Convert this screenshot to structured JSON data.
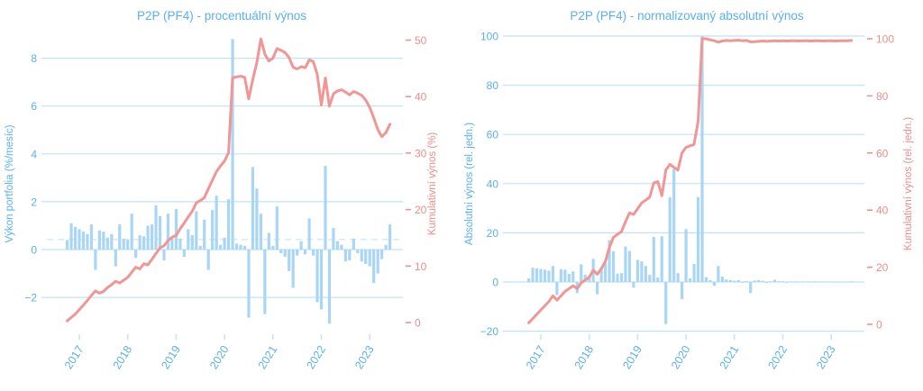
{
  "style": {
    "background": "#ffffff",
    "bar_color": "#a9d6f4",
    "line_color": "#f19595",
    "grid_color": "#bfe3f8",
    "dashed_color": "#d7ebf9",
    "blue_text": "#58b0f0",
    "red_text": "#f08c8c"
  },
  "chart_data": [
    {
      "type": "bar+line",
      "title": "P2P (PF4) - procentuální výnos",
      "left_axis": {
        "label": "Výkon portfolia (%/mesíc)",
        "ticks": [
          -2,
          0,
          2,
          4,
          6,
          8
        ],
        "range": [
          -3.5,
          9.0
        ]
      },
      "right_axis": {
        "label": "Kumulativní výnos (%)",
        "ticks": [
          0,
          10,
          20,
          30,
          40,
          50
        ],
        "range": [
          -2,
          51
        ]
      },
      "x_year_ticks": [
        "2017",
        "2018",
        "2019",
        "2020",
        "2021",
        "2022",
        "2023"
      ],
      "grid": true,
      "average_line": 0.42,
      "x": [
        "2016-10",
        "2016-11",
        "2016-12",
        "2017-01",
        "2017-02",
        "2017-03",
        "2017-04",
        "2017-05",
        "2017-06",
        "2017-07",
        "2017-08",
        "2017-09",
        "2017-10",
        "2017-11",
        "2017-12",
        "2018-01",
        "2018-02",
        "2018-03",
        "2018-04",
        "2018-05",
        "2018-06",
        "2018-07",
        "2018-08",
        "2018-09",
        "2018-10",
        "2018-11",
        "2018-12",
        "2019-01",
        "2019-02",
        "2019-03",
        "2019-04",
        "2019-05",
        "2019-06",
        "2019-07",
        "2019-08",
        "2019-09",
        "2019-10",
        "2019-11",
        "2019-12",
        "2020-01",
        "2020-02",
        "2020-03",
        "2020-04",
        "2020-05",
        "2020-06",
        "2020-07",
        "2020-08",
        "2020-09",
        "2020-10",
        "2020-11",
        "2020-12",
        "2021-01",
        "2021-02",
        "2021-03",
        "2021-04",
        "2021-05",
        "2021-06",
        "2021-07",
        "2021-08",
        "2021-09",
        "2021-10",
        "2021-11",
        "2021-12",
        "2022-01",
        "2022-02",
        "2022-03",
        "2022-04",
        "2022-05",
        "2022-06",
        "2022-07",
        "2022-08",
        "2022-09",
        "2022-10",
        "2022-11",
        "2022-12",
        "2023-01",
        "2023-02",
        "2023-03",
        "2023-04",
        "2023-05",
        "2023-06"
      ],
      "bar_series": {
        "name": "Výkon portfolia (%/mesíc)",
        "values": [
          0.4,
          1.1,
          0.95,
          0.85,
          0.75,
          0.65,
          1.05,
          -0.85,
          0.8,
          0.75,
          0.5,
          0.65,
          -0.7,
          1.05,
          0.45,
          0.4,
          1.5,
          -0.35,
          0.6,
          0.55,
          1.0,
          1.05,
          1.85,
          1.4,
          -0.45,
          1.5,
          0.5,
          1.7,
          0.45,
          -0.3,
          0.85,
          0.6,
          1.6,
          0.15,
          1.25,
          -0.85,
          1.65,
          2.25,
          0.2,
          0.5,
          2.1,
          8.8,
          0.25,
          0.2,
          0.15,
          -2.85,
          3.45,
          2.55,
          1.5,
          -2.7,
          0.7,
          0.15,
          1.8,
          -0.15,
          -0.3,
          -0.9,
          -1.6,
          -0.25,
          0.35,
          -0.2,
          1.3,
          -0.25,
          -2.2,
          -2.5,
          3.5,
          -3.1,
          0.9,
          0.35,
          0.2,
          -0.5,
          -0.45,
          0.45,
          -0.15,
          -0.5,
          -0.6,
          -0.7,
          -1.4,
          -1.0,
          -0.4,
          0.2,
          1.05
        ]
      },
      "line_series": {
        "name": "Kumulativní výnos (%)",
        "values": [
          0.3,
          0.9,
          1.5,
          2.3,
          3.1,
          3.9,
          4.8,
          5.6,
          5.2,
          5.5,
          6.2,
          6.7,
          7.3,
          7.0,
          7.5,
          8.0,
          8.9,
          9.8,
          9.5,
          10.4,
          10.2,
          11.2,
          12.2,
          13.2,
          13.6,
          14.5,
          15.1,
          15.4,
          16.6,
          17.6,
          18.7,
          19.7,
          21.2,
          21.6,
          22.1,
          23.7,
          25.2,
          26.7,
          27.7,
          28.6,
          30.1,
          43.3,
          43.5,
          43.6,
          43.4,
          39.6,
          43.0,
          46.0,
          50.2,
          47.5,
          46.3,
          46.8,
          48.5,
          48.2,
          47.8,
          46.9,
          45.2,
          44.9,
          45.3,
          45.1,
          46.5,
          46.2,
          43.9,
          38.5,
          43.3,
          38.3,
          40.5,
          41.0,
          41.2,
          40.8,
          40.3,
          40.9,
          40.6,
          40.2,
          39.4,
          38.1,
          36.2,
          34.2,
          32.9,
          33.6,
          35.1
        ]
      }
    },
    {
      "type": "bar+line",
      "title": "P2P (PF4) - normalizovaný absolutní výnos",
      "left_axis": {
        "label": "Absolutní výnos (rel. jedn.)",
        "ticks": [
          -20,
          0,
          20,
          40,
          60,
          80,
          100
        ],
        "range": [
          -21,
          101
        ]
      },
      "right_axis": {
        "label": "Kumulativní výnos (rel. jedn.)",
        "ticks": [
          0,
          20,
          40,
          60,
          80,
          100
        ],
        "range": [
          -3,
          102
        ]
      },
      "x_year_ticks": [
        "2017",
        "2018",
        "2019",
        "2020",
        "2021",
        "2022",
        "2023"
      ],
      "grid": true,
      "average_line": null,
      "x": [
        "2016-10",
        "2016-11",
        "2016-12",
        "2017-01",
        "2017-02",
        "2017-03",
        "2017-04",
        "2017-05",
        "2017-06",
        "2017-07",
        "2017-08",
        "2017-09",
        "2017-10",
        "2017-11",
        "2017-12",
        "2018-01",
        "2018-02",
        "2018-03",
        "2018-04",
        "2018-05",
        "2018-06",
        "2018-07",
        "2018-08",
        "2018-09",
        "2018-10",
        "2018-11",
        "2018-12",
        "2019-01",
        "2019-02",
        "2019-03",
        "2019-04",
        "2019-05",
        "2019-06",
        "2019-07",
        "2019-08",
        "2019-09",
        "2019-10",
        "2019-11",
        "2019-12",
        "2020-01",
        "2020-02",
        "2020-03",
        "2020-04",
        "2020-05",
        "2020-06",
        "2020-07",
        "2020-08",
        "2020-09",
        "2020-10",
        "2020-11",
        "2020-12",
        "2021-01",
        "2021-02",
        "2021-03",
        "2021-04",
        "2021-05",
        "2021-06",
        "2021-07",
        "2021-08",
        "2021-09",
        "2021-10",
        "2021-11",
        "2021-12",
        "2022-01",
        "2022-02",
        "2022-03",
        "2022-04",
        "2022-05",
        "2022-06",
        "2022-07",
        "2022-08",
        "2022-09",
        "2022-10",
        "2022-11",
        "2022-12",
        "2023-01",
        "2023-02",
        "2023-03",
        "2023-04",
        "2023-05",
        "2023-06"
      ],
      "bar_series": {
        "name": "Absolutní výnos (rel. jedn.)",
        "values": [
          1.5,
          5.8,
          5.5,
          5.3,
          5.0,
          4.6,
          6.5,
          -5.3,
          5.2,
          5.0,
          3.3,
          4.3,
          -4.5,
          7.2,
          3.0,
          2.5,
          9.4,
          -5.0,
          5.4,
          7.7,
          17.0,
          12.5,
          3.4,
          3.6,
          14.4,
          12.6,
          -2.3,
          9.0,
          8.4,
          6.5,
          2.9,
          18.3,
          1.8,
          18.6,
          -17.1,
          34.5,
          46.0,
          3.6,
          -7.0,
          21.5,
          1.5,
          7.3,
          34.5,
          100.0,
          2.0,
          0.8,
          -1.5,
          6.5,
          2.2,
          1.0,
          0.8,
          0.5,
          0.8,
          -0.3,
          0.4,
          -4.5,
          0.6,
          0.8,
          0.5,
          -0.4,
          0.3,
          0.9,
          0.3,
          0.3,
          -0.3,
          0.2,
          0.2,
          -0.2,
          0.15,
          0.15,
          -0.15,
          0.2,
          0.1,
          -0.2,
          0.15,
          0.15,
          -0.15,
          0.1,
          0.15,
          -0.1,
          0.3
        ]
      },
      "line_series": {
        "name": "Kumulativní výnos (rel. jedn.)",
        "values": [
          0.5,
          2.0,
          3.5,
          5.0,
          6.5,
          8.0,
          10.0,
          8.5,
          10.0,
          11.5,
          12.5,
          13.5,
          12.5,
          14.5,
          15.5,
          16.5,
          19.0,
          17.5,
          19.5,
          22.0,
          27.0,
          30.5,
          31.5,
          32.5,
          36.0,
          39.0,
          38.5,
          40.5,
          42.5,
          43.5,
          44.5,
          49.5,
          50.0,
          45.0,
          54.0,
          56.0,
          55.0,
          54.0,
          60.0,
          62.0,
          62.5,
          63.0,
          71.0,
          100.0,
          100.0,
          99.6,
          99.3,
          98.8,
          99.2,
          99.4,
          99.3,
          99.4,
          99.5,
          99.3,
          99.4,
          98.9,
          99.0,
          99.1,
          99.2,
          99.1,
          99.2,
          99.3,
          99.2,
          99.3,
          99.2,
          99.3,
          99.3,
          99.2,
          99.3,
          99.3,
          99.2,
          99.3,
          99.3,
          99.2,
          99.3,
          99.3,
          99.2,
          99.3,
          99.3,
          99.3,
          99.4
        ]
      }
    }
  ]
}
